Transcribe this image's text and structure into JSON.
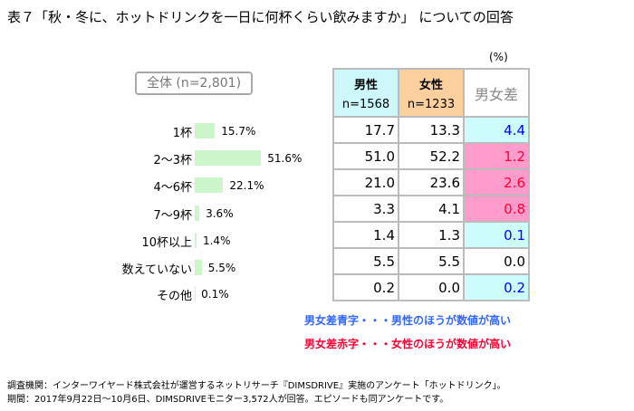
{
  "title": "表７「秋・冬に、ホットドリンクを一日に何杯くらい飲みますか」 についての回答",
  "overall_label": "全体 (n=2,801)",
  "unit": "(%)",
  "headers": {
    "male": "男性",
    "male_n": "n=1568",
    "female": "女性",
    "female_n": "n=1233",
    "diff": "男女差"
  },
  "colors": {
    "male_bg": "#ccf8fc",
    "female_bg": "#fcd09c",
    "blue_cell": "#ccfcfc",
    "pink_cell": "#ff9ccc",
    "blue_text": "#0000ff",
    "red_text": "#ff0033",
    "bar": "#ccf5cc"
  },
  "chart_data": {
    "type": "bar",
    "orientation": "horizontal",
    "categories": [
      "1杯",
      "2〜3杯",
      "4〜6杯",
      "7〜9杯",
      "10杯以上",
      "数えていない",
      "その他"
    ],
    "values": [
      15.7,
      51.6,
      22.1,
      3.6,
      1.4,
      5.5,
      0.1
    ],
    "value_labels": [
      "15.7%",
      "51.6%",
      "22.1%",
      "3.6%",
      "1.4%",
      "5.5%",
      "0.1%"
    ]
  },
  "rows": [
    {
      "male": "17.7",
      "female": "13.3",
      "diff": "4.4",
      "color": "blue"
    },
    {
      "male": "51.0",
      "female": "52.2",
      "diff": "1.2",
      "color": "red"
    },
    {
      "male": "21.0",
      "female": "23.6",
      "diff": "2.6",
      "color": "red"
    },
    {
      "male": "3.3",
      "female": "4.1",
      "diff": "0.8",
      "color": "red"
    },
    {
      "male": "1.4",
      "female": "1.3",
      "diff": "0.1",
      "color": "blue"
    },
    {
      "male": "5.5",
      "female": "5.5",
      "diff": "0.0",
      "color": "none"
    },
    {
      "male": "0.2",
      "female": "0.0",
      "diff": "0.2",
      "color": "blue"
    }
  ],
  "notes": {
    "blue": "男女差青字・・・男性のほうが数値が高い",
    "red": "男女差赤字・・・女性のほうが数値が高い"
  },
  "source": [
    "調査機関：インターワイヤード株式会社が運営するネットリサーチ『DIMSDRIVE』実施のアンケート「ホットドリンク」。",
    "期間：2017年9月22日〜10月6日、DIMSDRIVEモニター3,572人が回答。エピソードも同アンケートです。"
  ]
}
